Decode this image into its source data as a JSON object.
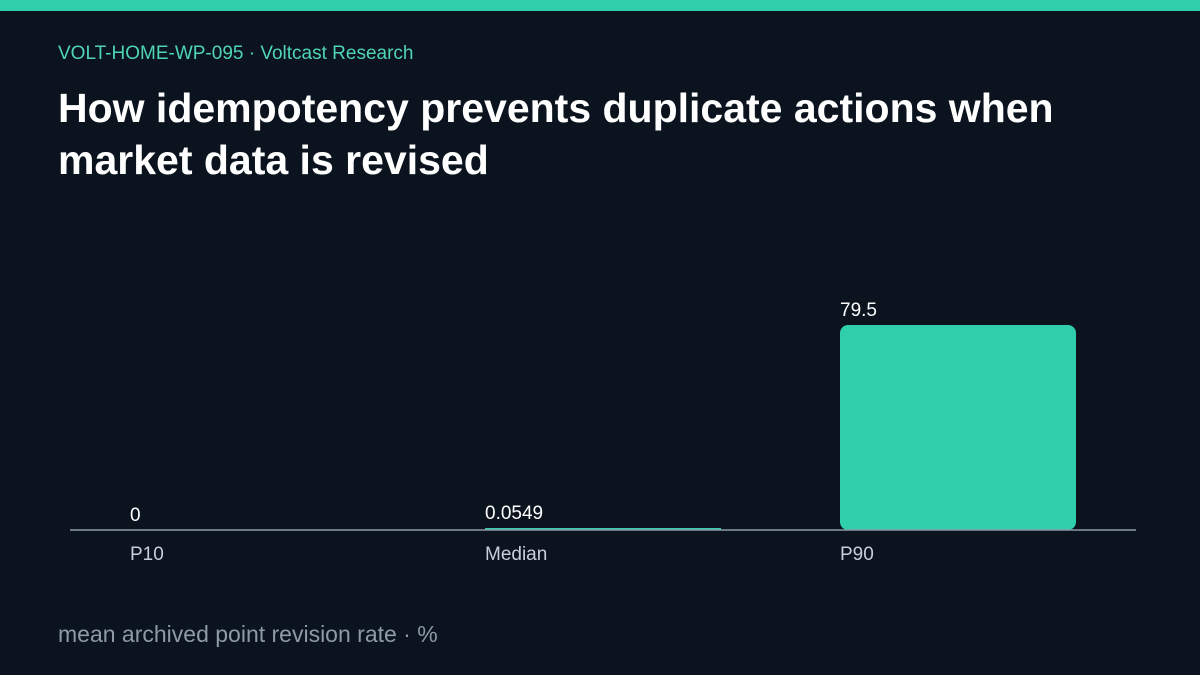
{
  "header": {
    "kicker": "VOLT-HOME-WP-095 · Voltcast Research",
    "title": "How idempotency prevents duplicate actions when market data is revised"
  },
  "caption": "mean archived point revision rate · %",
  "colors": {
    "background": "#0a131e",
    "accent": "#2ecfaa",
    "text": "#ffffff",
    "muted": "#8e9aa8",
    "axis": "#8e9aa8"
  },
  "chart_data": {
    "type": "bar",
    "categories": [
      "P10",
      "Median",
      "P90"
    ],
    "values": [
      0,
      0.0549,
      79.5
    ],
    "value_labels": [
      "0",
      "0.0549",
      "79.5"
    ],
    "ylim": [
      0,
      79.5
    ],
    "grid": false,
    "legend": "none"
  }
}
